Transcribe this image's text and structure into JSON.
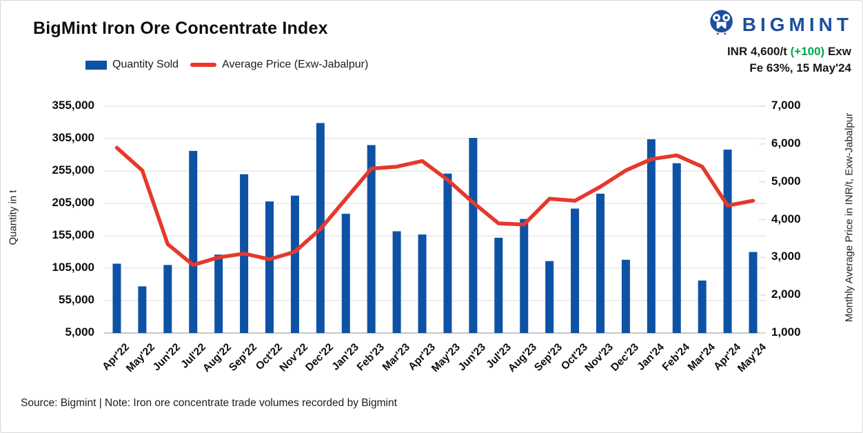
{
  "header": {
    "title": "BigMint Iron Ore Concentrate Index",
    "brand_name": "BIGMINT",
    "price_info": {
      "prefix": "INR 4,600/t",
      "change": "(+100)",
      "suffix": "Exw",
      "subtitle": "Fe 63%, 15 May'24"
    }
  },
  "legend": {
    "items": [
      {
        "label": "Quantity Sold",
        "type": "bar"
      },
      {
        "label": "Average Price (Exw-Jabalpur)",
        "type": "line"
      }
    ]
  },
  "footer": {
    "note": "Source: Bigmint | Note: Iron ore concentrate trade volumes recorded by Bigmint"
  },
  "colors": {
    "bar_blue": "#0d52a5",
    "line_red": "#e6382c",
    "brand_blue": "#1d4f9e",
    "change_green": "#00a651",
    "gridline": "#ededed",
    "baseline": "#c6c6c6",
    "right_tick_stub": "#e0e0e0"
  },
  "chart_data": {
    "type": "bar+line",
    "title": "BigMint Iron Ore Concentrate Index",
    "grid": true,
    "legend_position": "top",
    "categories": [
      "Apr'22",
      "May'22",
      "Jun'22",
      "Jul'22",
      "Aug'22",
      "Sep'22",
      "Oct'22",
      "Nov'22",
      "Dec'22",
      "Jan'23",
      "Feb'23",
      "Mar'23",
      "Apr'23",
      "May'23",
      "Jun'23",
      "Jul'23",
      "Aug'23",
      "Sep'23",
      "Oct'23",
      "Nov'23",
      "Dec'23",
      "Jan'24",
      "Feb'24",
      "Mar'24",
      "Apr'24",
      "May'24"
    ],
    "series": [
      {
        "name": "Quantity Sold",
        "type": "bar",
        "axis": "left",
        "color": "#0d52a5",
        "values": [
          112000,
          77000,
          110000,
          286000,
          126000,
          250000,
          208000,
          217000,
          329000,
          189000,
          295000,
          162000,
          157000,
          251000,
          306000,
          152000,
          181000,
          116000,
          197000,
          220000,
          118000,
          304000,
          267000,
          86000,
          288000,
          130000
        ]
      },
      {
        "name": "Average Price (Exw-Jabalpur)",
        "type": "line",
        "axis": "right",
        "color": "#e6382c",
        "values": [
          5900,
          5300,
          3350,
          2800,
          3000,
          3100,
          2950,
          3150,
          3750,
          4550,
          5350,
          5400,
          5550,
          5050,
          4450,
          3900,
          3870,
          4550,
          4500,
          4870,
          5300,
          5600,
          5700,
          5400,
          4370,
          4500
        ]
      }
    ],
    "left_axis": {
      "label": "Quantity in t",
      "min": 5000,
      "max": 355000,
      "step": 50000,
      "ticks": [
        355000,
        305000,
        255000,
        205000,
        155000,
        105000,
        55000,
        5000
      ]
    },
    "right_axis": {
      "label": "Monthly Average Price in INR/t, Exw-Jabalpur",
      "min": 1000,
      "max": 7000,
      "step": 1000,
      "ticks": [
        7000,
        6000,
        5000,
        4000,
        3000,
        2000,
        1000
      ]
    }
  }
}
